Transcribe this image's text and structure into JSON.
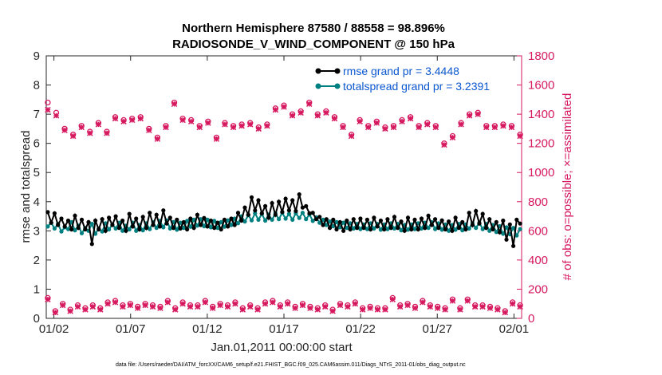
{
  "chart_data": {
    "type": "line",
    "title_line1": "Northern Hemisphere 87580 / 88558 = 98.896%",
    "title_line2": "RADIOSONDE_V_WIND_COMPONENT @ 150 hPa",
    "xlabel": "Jan.01,2011 00:00:00 start",
    "ylabel_left": "rmse and totalspread",
    "ylabel_right": "# of obs: o=possible; ×=assimilated",
    "footnote": "data file: /Users/raeder/DAI/ATM_forcXX/CAM6_setup/f.e21.FHIST_BGC.f09_025.CAM6assim.011/Diags_NTrS_2011-01/obs_diag_output.nc",
    "xlim": [
      1,
      32
    ],
    "ylim_left": [
      0,
      9
    ],
    "ylim_right": [
      0,
      1800
    ],
    "x_ticks": [
      1.5,
      6.5,
      11.5,
      16.5,
      21.5,
      26.5,
      31.5
    ],
    "x_tick_labels": [
      "01/02",
      "01/07",
      "01/12",
      "01/17",
      "01/22",
      "01/27",
      "02/01"
    ],
    "y_ticks_left": [
      0,
      1,
      2,
      3,
      4,
      5,
      6,
      7,
      8,
      9
    ],
    "y_tick_labels_left": [
      "0",
      "1",
      "2",
      "3",
      "4",
      "5",
      "6",
      "7",
      "8",
      "9"
    ],
    "y_ticks_right": [
      0,
      200,
      400,
      600,
      800,
      1000,
      1200,
      1400,
      1600,
      1800
    ],
    "y_tick_labels_right": [
      "0",
      "200",
      "400",
      "600",
      "800",
      "1000",
      "1200",
      "1400",
      "1600",
      "1800"
    ],
    "colors": {
      "rmse": "#000000",
      "spread": "#008080",
      "obs": "#d6185f",
      "axis": "#262626",
      "legend_text": "#0b57d0"
    },
    "series": [
      {
        "name": "rmse grand pr = 3.4448",
        "values": [
          3.64,
          3.28,
          3.6,
          3.2,
          3.42,
          3.15,
          3.35,
          3.05,
          3.52,
          3.1,
          3.38,
          3.05,
          3.3,
          2.55,
          3.35,
          3.05,
          3.4,
          3.0,
          3.45,
          3.2,
          3.5,
          3.1,
          3.35,
          3.0,
          3.58,
          3.15,
          3.42,
          3.05,
          3.48,
          3.1,
          3.62,
          3.2,
          3.55,
          3.15,
          3.7,
          3.25,
          3.45,
          3.1,
          3.38,
          3.08,
          3.3,
          3.05,
          3.42,
          3.1,
          3.55,
          3.2,
          3.44,
          3.15,
          3.35,
          3.1,
          3.28,
          3.05,
          3.38,
          3.15,
          3.42,
          3.2,
          3.62,
          3.35,
          3.8,
          3.55,
          4.15,
          3.7,
          4.05,
          3.6,
          3.85,
          3.45,
          3.95,
          3.55,
          4.0,
          3.65,
          4.1,
          3.7,
          4.05,
          3.68,
          4.25,
          3.8,
          3.85,
          3.6,
          3.62,
          3.4,
          3.48,
          3.2,
          3.4,
          3.1,
          3.38,
          3.05,
          3.3,
          3.0,
          3.35,
          3.05,
          3.4,
          3.1,
          3.42,
          3.1,
          3.38,
          3.05,
          3.45,
          3.15,
          3.35,
          3.05,
          3.4,
          3.1,
          3.48,
          3.1,
          3.32,
          3.0,
          3.45,
          3.05,
          3.38,
          3.05,
          3.42,
          3.1,
          3.52,
          3.2,
          3.4,
          3.1,
          3.36,
          3.05,
          3.32,
          3.0,
          3.45,
          3.1,
          3.3,
          3.05,
          3.62,
          3.2,
          3.68,
          3.25,
          3.58,
          3.1,
          3.4,
          3.05,
          3.3,
          2.95,
          3.35,
          2.7,
          3.22,
          2.48,
          3.38,
          3.25
        ]
      },
      {
        "name": "totalspread grand pr = 3.2391",
        "values": [
          3.15,
          3.28,
          3.08,
          3.24,
          2.98,
          3.12,
          3.06,
          3.3,
          3.02,
          3.18,
          2.92,
          3.1,
          3.0,
          3.24,
          2.9,
          3.08,
          2.98,
          3.26,
          3.05,
          3.22,
          3.08,
          3.28,
          3.0,
          3.18,
          3.05,
          3.28,
          3.0,
          3.2,
          3.02,
          3.26,
          3.06,
          3.3,
          3.1,
          3.34,
          3.12,
          3.36,
          3.08,
          3.3,
          3.04,
          3.28,
          3.1,
          3.34,
          3.14,
          3.38,
          3.18,
          3.4,
          3.16,
          3.38,
          3.12,
          3.34,
          3.1,
          3.3,
          3.14,
          3.36,
          3.2,
          3.42,
          3.26,
          3.5,
          3.32,
          3.54,
          3.36,
          3.6,
          3.38,
          3.58,
          3.35,
          3.56,
          3.38,
          3.6,
          3.4,
          3.62,
          3.42,
          3.58,
          3.38,
          3.6,
          3.44,
          3.62,
          3.4,
          3.56,
          3.34,
          3.46,
          3.28,
          3.38,
          3.2,
          3.32,
          3.16,
          3.3,
          3.12,
          3.28,
          3.1,
          3.26,
          3.08,
          3.24,
          3.06,
          3.22,
          3.06,
          3.26,
          3.08,
          3.24,
          3.04,
          3.22,
          3.06,
          3.26,
          3.08,
          3.24,
          3.02,
          3.2,
          3.04,
          3.22,
          3.06,
          3.26,
          3.08,
          3.28,
          3.1,
          3.3,
          3.06,
          3.26,
          3.04,
          3.22,
          3.0,
          3.2,
          3.04,
          3.24,
          3.02,
          3.22,
          3.08,
          3.26,
          3.1,
          3.28,
          3.06,
          3.24,
          3.0,
          3.2,
          2.96,
          3.16,
          2.9,
          3.12,
          2.88,
          3.1,
          2.84,
          3.06
        ]
      }
    ],
    "obs_possible": [
      1480,
      1410,
      1300,
      1260,
      1320,
      1280,
      1340,
      1280,
      1380,
      1360,
      1370,
      1380,
      1300,
      1240,
      1320,
      1480,
      1370,
      1360,
      1320,
      1350,
      1240,
      1340,
      1320,
      1330,
      1340,
      1310,
      1330,
      1440,
      1460,
      1400,
      1420,
      1480,
      1400,
      1420,
      1380,
      1320,
      1260,
      1360,
      1320,
      1350,
      1310,
      1320,
      1360,
      1380,
      1320,
      1340,
      1320,
      1200,
      1250,
      1340,
      1400,
      1410,
      1320,
      1320,
      1330,
      1320,
      1260
    ],
    "obs_assimilated": [
      1430,
      1390,
      1290,
      1250,
      1310,
      1270,
      1330,
      1270,
      1370,
      1350,
      1360,
      1370,
      1290,
      1230,
      1310,
      1470,
      1360,
      1350,
      1310,
      1340,
      1230,
      1330,
      1310,
      1320,
      1330,
      1300,
      1320,
      1430,
      1450,
      1390,
      1410,
      1470,
      1390,
      1410,
      1370,
      1310,
      1250,
      1350,
      1310,
      1340,
      1300,
      1310,
      1350,
      1370,
      1310,
      1330,
      1310,
      1190,
      1240,
      1330,
      1390,
      1400,
      1310,
      1310,
      1320,
      1310,
      1250
    ],
    "obs_low_possible": [
      140,
      50,
      100,
      60,
      90,
      70,
      90,
      70,
      110,
      120,
      90,
      100,
      80,
      100,
      90,
      80,
      120,
      70,
      110,
      90,
      90,
      120,
      80,
      100,
      90,
      110,
      70,
      90,
      70,
      110,
      120,
      90,
      110,
      80,
      100,
      80,
      70,
      90,
      60,
      100,
      90,
      110,
      70,
      80,
      70,
      70,
      140,
      90,
      100,
      80,
      120,
      90,
      80,
      70,
      130,
      70,
      130,
      90,
      90,
      80,
      70,
      50,
      110,
      90
    ],
    "obs_low_assimilated": [
      130,
      40,
      90,
      50,
      80,
      60,
      80,
      60,
      100,
      110,
      80,
      90,
      70,
      90,
      80,
      70,
      110,
      60,
      100,
      80,
      80,
      110,
      70,
      90,
      80,
      100,
      60,
      80,
      60,
      100,
      110,
      80,
      100,
      70,
      90,
      70,
      60,
      80,
      50,
      90,
      80,
      100,
      60,
      70,
      60,
      60,
      130,
      80,
      90,
      70,
      110,
      80,
      70,
      60,
      120,
      60,
      120,
      80,
      80,
      70,
      60,
      40,
      100,
      80
    ],
    "legend_placement": "top-right"
  }
}
